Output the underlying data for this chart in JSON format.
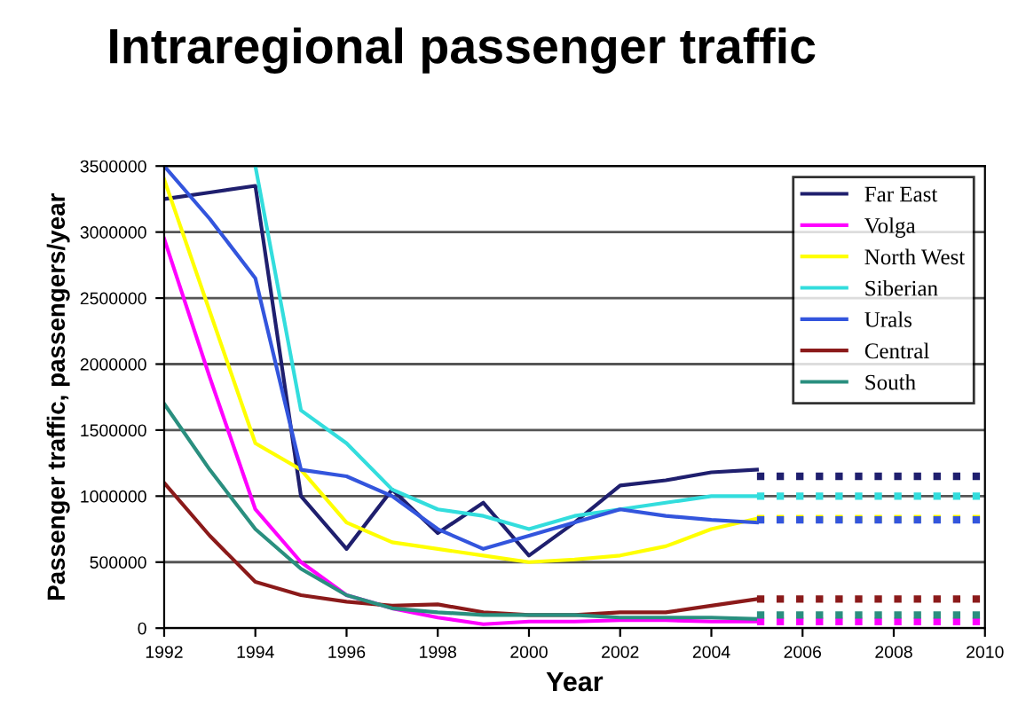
{
  "chart_data": {
    "type": "line",
    "title": "Intraregional passenger traffic",
    "xlabel": "Year",
    "ylabel": "Passenger traffic, passengers/year",
    "x": [
      1992,
      1993,
      1994,
      1995,
      1996,
      1997,
      1998,
      1999,
      2000,
      2001,
      2002,
      2003,
      2004,
      2005,
      2006,
      2007,
      2008,
      2009,
      2010
    ],
    "series": [
      {
        "name": "Far East",
        "color": "#1f1f6e",
        "values": [
          3250000,
          3300000,
          3350000,
          1000000,
          600000,
          1050000,
          720000,
          950000,
          550000,
          800000,
          1080000,
          1120000,
          1180000,
          1200000,
          null,
          null,
          null,
          null,
          null
        ]
      },
      {
        "name": "Volga",
        "color": "#ff00ff",
        "values": [
          2950000,
          1900000,
          900000,
          500000,
          250000,
          150000,
          80000,
          30000,
          50000,
          50000,
          60000,
          60000,
          50000,
          50000,
          null,
          null,
          null,
          null,
          null
        ]
      },
      {
        "name": "North West",
        "color": "#ffff00",
        "values": [
          3400000,
          2400000,
          1400000,
          1200000,
          800000,
          650000,
          600000,
          550000,
          500000,
          520000,
          550000,
          620000,
          750000,
          830000,
          null,
          null,
          null,
          null,
          null
        ]
      },
      {
        "name": "Siberian",
        "color": "#33dddd",
        "values": [
          null,
          null,
          3500000,
          1650000,
          1400000,
          1050000,
          900000,
          850000,
          750000,
          850000,
          900000,
          950000,
          1000000,
          1000000,
          null,
          null,
          null,
          null,
          null
        ]
      },
      {
        "name": "Urals",
        "color": "#3355dd",
        "values": [
          3500000,
          3100000,
          2650000,
          1200000,
          1150000,
          1000000,
          750000,
          600000,
          700000,
          800000,
          900000,
          850000,
          820000,
          800000,
          null,
          null,
          null,
          null,
          null
        ]
      },
      {
        "name": "Central",
        "color": "#8b1a1a",
        "values": [
          1100000,
          700000,
          350000,
          250000,
          200000,
          170000,
          180000,
          120000,
          100000,
          100000,
          120000,
          120000,
          170000,
          220000,
          null,
          null,
          null,
          null,
          null
        ]
      },
      {
        "name": "South",
        "color": "#2a8f7f",
        "values": [
          1700000,
          1200000,
          750000,
          450000,
          250000,
          150000,
          120000,
          100000,
          100000,
          100000,
          80000,
          80000,
          80000,
          70000,
          null,
          null,
          null,
          null,
          null
        ]
      },
      {
        "color": "#1f1f6e",
        "line_style": "dotted",
        "values": [
          null,
          null,
          null,
          null,
          null,
          null,
          null,
          null,
          null,
          null,
          null,
          null,
          null,
          1150000,
          1150000,
          1150000,
          1150000,
          1150000,
          1150000
        ]
      },
      {
        "color": "#ff00ff",
        "line_style": "dotted",
        "values": [
          null,
          null,
          null,
          null,
          null,
          null,
          null,
          null,
          null,
          null,
          null,
          null,
          null,
          50000,
          50000,
          50000,
          50000,
          50000,
          50000
        ]
      },
      {
        "color": "#ffff00",
        "line_style": "dotted",
        "values": [
          null,
          null,
          null,
          null,
          null,
          null,
          null,
          null,
          null,
          null,
          null,
          null,
          null,
          830000,
          830000,
          830000,
          830000,
          830000,
          830000
        ]
      },
      {
        "color": "#33dddd",
        "line_style": "dotted",
        "values": [
          null,
          null,
          null,
          null,
          null,
          null,
          null,
          null,
          null,
          null,
          null,
          null,
          null,
          1000000,
          1000000,
          1000000,
          1000000,
          1000000,
          1000000
        ]
      },
      {
        "color": "#3355dd",
        "line_style": "dotted",
        "values": [
          null,
          null,
          null,
          null,
          null,
          null,
          null,
          null,
          null,
          null,
          null,
          null,
          null,
          820000,
          820000,
          820000,
          820000,
          820000,
          820000
        ]
      },
      {
        "color": "#8b1a1a",
        "line_style": "dotted",
        "values": [
          null,
          null,
          null,
          null,
          null,
          null,
          null,
          null,
          null,
          null,
          null,
          null,
          null,
          220000,
          220000,
          220000,
          220000,
          220000,
          220000
        ]
      },
      {
        "color": "#2a8f7f",
        "line_style": "dotted",
        "values": [
          null,
          null,
          null,
          null,
          null,
          null,
          null,
          null,
          null,
          null,
          null,
          null,
          null,
          100000,
          100000,
          100000,
          100000,
          100000,
          100000
        ]
      }
    ],
    "xlim": [
      1992,
      2010
    ],
    "xticks": [
      1992,
      1994,
      1996,
      1998,
      2000,
      2002,
      2004,
      2006,
      2008,
      2010
    ],
    "ylim": [
      0,
      3500000
    ],
    "yticks": [
      0,
      500000,
      1000000,
      1500000,
      2000000,
      2500000,
      3000000,
      3500000
    ],
    "grid": "y",
    "legend": "top right",
    "marker": "none"
  }
}
